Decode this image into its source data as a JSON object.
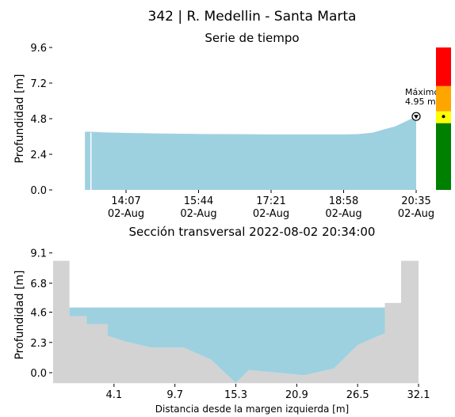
{
  "figure": {
    "title": "342 | R. Medellin - Santa Marta"
  },
  "colors": {
    "water": "#9ed1e0",
    "ground": "#d3d3d3",
    "level_red": "#ff0000",
    "level_orange": "#ffa500",
    "level_yellow": "#ffff00",
    "level_green": "#008000"
  },
  "chart_data": [
    {
      "type": "area",
      "title": "Serie de tiempo",
      "xlabel": "",
      "ylabel": "Profundidad [m]",
      "ylim": [
        0,
        9.6
      ],
      "yticks": [
        "0.0",
        "2.4",
        "4.8",
        "7.2",
        "9.6"
      ],
      "xticks": [
        {
          "time": "14:07",
          "date": "02-Aug"
        },
        {
          "time": "15:44",
          "date": "02-Aug"
        },
        {
          "time": "17:21",
          "date": "02-Aug"
        },
        {
          "time": "18:58",
          "date": "02-Aug"
        },
        {
          "time": "20:35",
          "date": "02-Aug"
        }
      ],
      "x_minutes_from_first_tick": [
        -55,
        -47,
        -30,
        0,
        50,
        97,
        150,
        194,
        240,
        291,
        310,
        330,
        345,
        360,
        374,
        388
      ],
      "values": [
        3.92,
        3.92,
        3.88,
        3.84,
        3.8,
        3.77,
        3.76,
        3.74,
        3.74,
        3.74,
        3.76,
        3.86,
        4.08,
        4.28,
        4.62,
        4.95
      ],
      "annotation": {
        "label": "Máximo",
        "value_label": "4.95 m",
        "value": 4.95
      },
      "level_bands": [
        {
          "color": "green",
          "from": 0,
          "to": 4.5
        },
        {
          "color": "yellow",
          "from": 4.5,
          "to": 5.3
        },
        {
          "color": "orange",
          "from": 5.3,
          "to": 7.0
        },
        {
          "color": "red",
          "from": 7.0,
          "to": 9.6
        }
      ]
    },
    {
      "type": "area",
      "title": "Sección transversal 2022-08-02 20:34:00",
      "xlabel": "Distancia desde la margen izquierda [m]",
      "ylabel": "Profundidad [m]",
      "xlim": [
        -1.5,
        32.1
      ],
      "ylim": [
        -0.8,
        9.1
      ],
      "xticks": [
        "4.1",
        "9.7",
        "15.3",
        "20.9",
        "26.5",
        "32.1"
      ],
      "yticks": [
        "0.0",
        "2.3",
        "4.6",
        "6.8",
        "9.1"
      ],
      "water_level": 4.95,
      "bed_x": [
        -1.5,
        0.0,
        0.0,
        1.6,
        1.6,
        3.5,
        3.5,
        5.0,
        7.5,
        10.5,
        13.0,
        15.3,
        16.5,
        19.0,
        21.6,
        24.3,
        26.5,
        29.0,
        29.0,
        30.5,
        30.5,
        32.1
      ],
      "bed_y": [
        8.5,
        8.5,
        4.3,
        4.3,
        3.7,
        3.7,
        2.8,
        2.4,
        1.9,
        1.9,
        1.0,
        -0.8,
        0.2,
        0.0,
        -0.2,
        0.3,
        2.1,
        3.0,
        5.3,
        5.3,
        8.5,
        8.5
      ]
    }
  ]
}
